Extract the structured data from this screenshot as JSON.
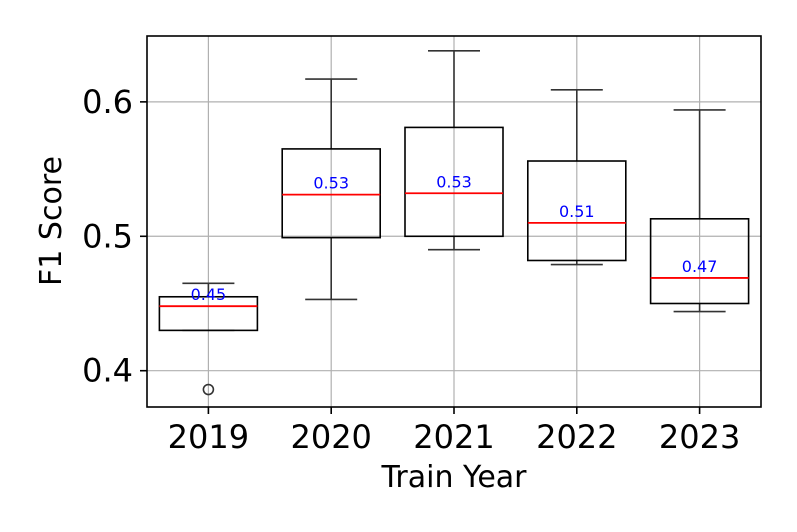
{
  "chart_data": {
    "type": "box",
    "title": "",
    "xlabel": "Train Year",
    "ylabel": "F1 Score",
    "ylim": [
      0.373,
      0.649
    ],
    "yticks": [
      0.4,
      0.5,
      0.6
    ],
    "ytick_labels": [
      "0.4",
      "0.5",
      "0.6"
    ],
    "grid": true,
    "categories": [
      "2019",
      "2020",
      "2021",
      "2022",
      "2023"
    ],
    "boxes": [
      {
        "category": "2019",
        "whisker_low": 0.43,
        "q1": 0.43,
        "median": 0.448,
        "q3": 0.455,
        "whisker_high": 0.465,
        "outliers": [
          0.386
        ],
        "label": "0.45"
      },
      {
        "category": "2020",
        "whisker_low": 0.453,
        "q1": 0.499,
        "median": 0.531,
        "q3": 0.565,
        "whisker_high": 0.617,
        "outliers": [],
        "label": "0.53"
      },
      {
        "category": "2021",
        "whisker_low": 0.49,
        "q1": 0.5,
        "median": 0.532,
        "q3": 0.581,
        "whisker_high": 0.638,
        "outliers": [],
        "label": "0.53"
      },
      {
        "category": "2022",
        "whisker_low": 0.479,
        "q1": 0.482,
        "median": 0.51,
        "q3": 0.556,
        "whisker_high": 0.609,
        "outliers": [],
        "label": "0.51"
      },
      {
        "category": "2023",
        "whisker_low": 0.444,
        "q1": 0.45,
        "median": 0.469,
        "q3": 0.513,
        "whisker_high": 0.594,
        "outliers": [],
        "label": "0.47"
      }
    ]
  }
}
